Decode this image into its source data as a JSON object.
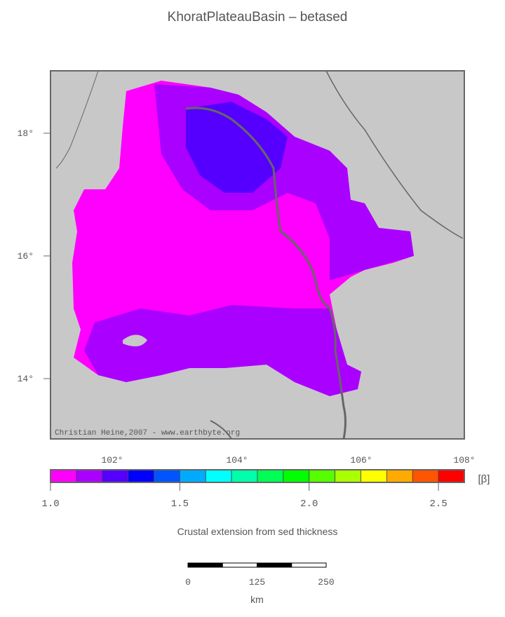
{
  "title": "KhoratPlateauBasin – betased",
  "map": {
    "lat_labels": [
      "18°",
      "16°",
      "14°"
    ],
    "lon_labels": [
      "102°",
      "104°",
      "106°",
      "108°"
    ],
    "credit": "Christian Heine,2007 - www.earthbyte.org"
  },
  "colorbar": {
    "unit": "[β]",
    "labels": [
      "1.0",
      "1.5",
      "2.0",
      "2.5"
    ],
    "colors": [
      "#ff00ff",
      "#aa00ff",
      "#5500ff",
      "#0000ff",
      "#0055ff",
      "#00aaff",
      "#00ffff",
      "#00ffaa",
      "#00ff55",
      "#00ff00",
      "#55ff00",
      "#aaff00",
      "#ffff00",
      "#ffaa00",
      "#ff5500",
      "#ff0000"
    ],
    "caption": "Crustal extension from sed thickness"
  },
  "scalebar": {
    "labels": [
      "0",
      "125",
      "250"
    ],
    "unit": "km"
  }
}
